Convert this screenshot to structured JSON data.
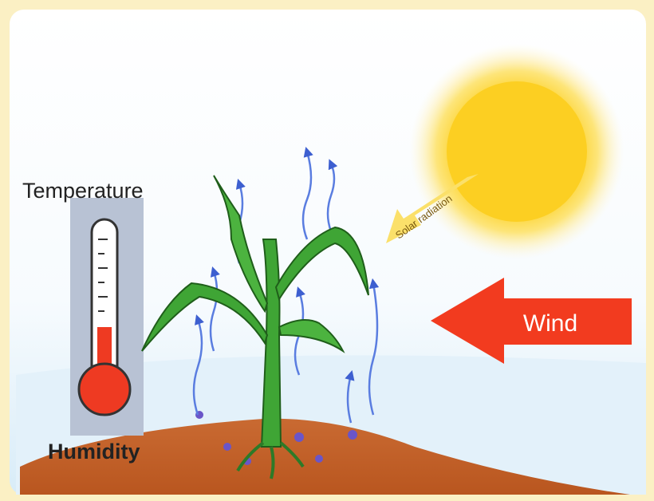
{
  "labels": {
    "temperature": "Temperature",
    "humidity": "Humidity",
    "wind": "Wind",
    "solar_radiation": "Solar radiation"
  }
}
